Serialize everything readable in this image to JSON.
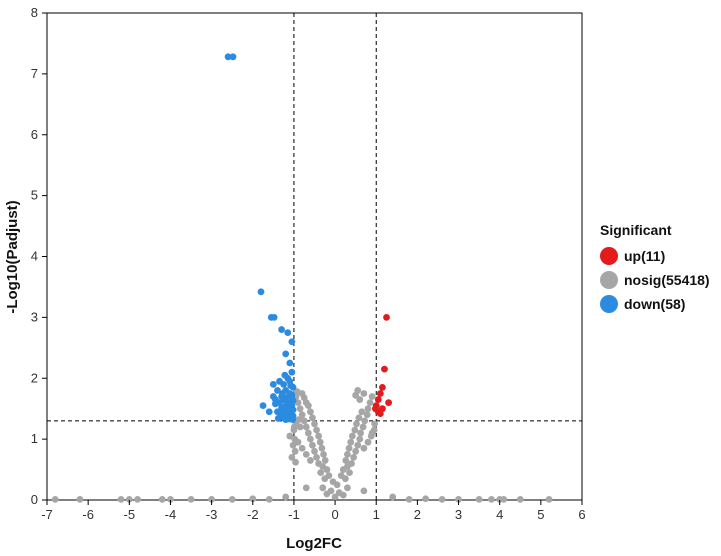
{
  "chart_data": {
    "type": "scatter",
    "title": "",
    "xlabel": "Log2FC",
    "ylabel": "-Log10(Padjust)",
    "xlim": [
      -7,
      6
    ],
    "ylim": [
      0,
      8
    ],
    "xticks": [
      "-7",
      "-6",
      "-5",
      "-4",
      "-3",
      "-2",
      "-1",
      "0",
      "1",
      "2",
      "3",
      "4",
      "5",
      "6"
    ],
    "yticks": [
      "0",
      "1",
      "2",
      "3",
      "4",
      "5",
      "6",
      "7",
      "8"
    ],
    "thresholds": {
      "log2fc": [
        -1,
        1
      ],
      "neg_log10_padjust": 1.3
    },
    "legend": {
      "title": "Significant",
      "entries": [
        {
          "label": "up(11)",
          "color": "#e41a1c"
        },
        {
          "label": "nosig(55418)",
          "color": "#a6a6a6"
        },
        {
          "label": "down(58)",
          "color": "#2b8be0"
        }
      ]
    },
    "series": [
      {
        "name": "up",
        "color": "#e41a1c",
        "points": [
          [
            1.25,
            3.0
          ],
          [
            1.2,
            2.15
          ],
          [
            1.15,
            1.85
          ],
          [
            1.1,
            1.75
          ],
          [
            1.05,
            1.65
          ],
          [
            1.3,
            1.6
          ],
          [
            1.0,
            1.55
          ],
          [
            1.15,
            1.5
          ],
          [
            1.05,
            1.45
          ],
          [
            1.1,
            1.42
          ],
          [
            0.98,
            1.5
          ]
        ]
      },
      {
        "name": "down",
        "color": "#2b8be0",
        "points": [
          [
            -2.6,
            7.28
          ],
          [
            -2.48,
            7.28
          ],
          [
            -1.8,
            3.42
          ],
          [
            -1.55,
            3.0
          ],
          [
            -1.48,
            3.0
          ],
          [
            -1.3,
            2.8
          ],
          [
            -1.15,
            2.75
          ],
          [
            -1.05,
            2.6
          ],
          [
            -1.2,
            2.4
          ],
          [
            -1.1,
            2.25
          ],
          [
            -1.05,
            2.1
          ],
          [
            -1.15,
            2.0
          ],
          [
            -1.35,
            1.95
          ],
          [
            -1.25,
            1.9
          ],
          [
            -1.08,
            1.88
          ],
          [
            -1.02,
            1.85
          ],
          [
            -1.4,
            1.8
          ],
          [
            -1.2,
            1.8
          ],
          [
            -1.1,
            1.75
          ],
          [
            -1.05,
            1.72
          ],
          [
            -1.3,
            1.7
          ],
          [
            -1.18,
            1.68
          ],
          [
            -1.25,
            1.65
          ],
          [
            -1.02,
            1.63
          ],
          [
            -1.35,
            1.6
          ],
          [
            -1.15,
            1.6
          ],
          [
            -1.08,
            1.58
          ],
          [
            -1.45,
            1.58
          ],
          [
            -1.2,
            1.55
          ],
          [
            -1.05,
            1.55
          ],
          [
            -1.3,
            1.52
          ],
          [
            -1.12,
            1.5
          ],
          [
            -1.75,
            1.55
          ],
          [
            -1.6,
            1.45
          ],
          [
            -1.02,
            1.48
          ],
          [
            -1.22,
            1.46
          ],
          [
            -1.4,
            1.45
          ],
          [
            -1.1,
            1.44
          ],
          [
            -1.28,
            1.42
          ],
          [
            -1.05,
            1.4
          ],
          [
            -1.18,
            1.4
          ],
          [
            -1.32,
            1.38
          ],
          [
            -1.02,
            1.38
          ],
          [
            -1.15,
            1.36
          ],
          [
            -1.25,
            1.35
          ],
          [
            -1.08,
            1.34
          ],
          [
            -1.38,
            1.34
          ],
          [
            -1.12,
            1.33
          ],
          [
            -1.2,
            1.32
          ],
          [
            -1.03,
            1.32
          ],
          [
            -1.5,
            1.7
          ],
          [
            -1.45,
            1.65
          ],
          [
            -1.28,
            1.75
          ],
          [
            -1.5,
            1.9
          ],
          [
            -1.1,
            1.95
          ],
          [
            -1.22,
            2.05
          ],
          [
            -1.06,
            1.68
          ],
          [
            -1.14,
            1.52
          ]
        ]
      },
      {
        "name": "nosig",
        "color": "#a6a6a6",
        "points": [
          [
            -0.2,
            0.1
          ],
          [
            -0.1,
            0.15
          ],
          [
            0.0,
            0.05
          ],
          [
            0.1,
            0.12
          ],
          [
            0.2,
            0.08
          ],
          [
            -0.3,
            0.2
          ],
          [
            0.3,
            0.2
          ],
          [
            -0.05,
            0.3
          ],
          [
            0.05,
            0.25
          ],
          [
            -0.25,
            0.35
          ],
          [
            0.25,
            0.35
          ],
          [
            -0.35,
            0.45
          ],
          [
            0.35,
            0.45
          ],
          [
            -0.3,
            0.55
          ],
          [
            0.3,
            0.55
          ],
          [
            -0.4,
            0.6
          ],
          [
            0.4,
            0.6
          ],
          [
            -0.45,
            0.7
          ],
          [
            0.45,
            0.7
          ],
          [
            -0.5,
            0.8
          ],
          [
            0.5,
            0.8
          ],
          [
            -0.55,
            0.9
          ],
          [
            0.55,
            0.9
          ],
          [
            -0.6,
            1.0
          ],
          [
            0.6,
            1.0
          ],
          [
            -0.65,
            1.1
          ],
          [
            0.62,
            1.1
          ],
          [
            -0.7,
            1.2
          ],
          [
            0.68,
            1.2
          ],
          [
            -0.75,
            1.3
          ],
          [
            0.72,
            1.3
          ],
          [
            -0.8,
            1.4
          ],
          [
            0.78,
            1.4
          ],
          [
            -0.85,
            1.5
          ],
          [
            0.8,
            1.5
          ],
          [
            -0.9,
            1.6
          ],
          [
            0.85,
            1.6
          ],
          [
            -0.95,
            1.7
          ],
          [
            0.9,
            1.7
          ],
          [
            -0.92,
            1.78
          ],
          [
            0.55,
            1.8
          ],
          [
            0.5,
            1.72
          ],
          [
            0.6,
            1.65
          ],
          [
            0.7,
            1.75
          ],
          [
            -0.8,
            1.75
          ],
          [
            -0.75,
            1.68
          ],
          [
            -0.7,
            1.6
          ],
          [
            -0.65,
            1.55
          ],
          [
            -0.6,
            1.45
          ],
          [
            0.65,
            1.45
          ],
          [
            -0.55,
            1.35
          ],
          [
            0.58,
            1.35
          ],
          [
            -0.5,
            1.25
          ],
          [
            0.52,
            1.25
          ],
          [
            -0.45,
            1.15
          ],
          [
            0.48,
            1.15
          ],
          [
            -0.4,
            1.05
          ],
          [
            0.42,
            1.05
          ],
          [
            -0.36,
            0.95
          ],
          [
            0.38,
            0.95
          ],
          [
            -0.32,
            0.85
          ],
          [
            0.34,
            0.85
          ],
          [
            -0.28,
            0.75
          ],
          [
            0.3,
            0.75
          ],
          [
            -0.24,
            0.65
          ],
          [
            0.26,
            0.65
          ],
          [
            -0.2,
            0.5
          ],
          [
            0.2,
            0.5
          ],
          [
            -0.15,
            0.4
          ],
          [
            0.15,
            0.4
          ],
          [
            -0.99,
            1.2
          ],
          [
            -0.98,
            1.0
          ],
          [
            -0.97,
            0.8
          ],
          [
            -0.96,
            0.62
          ],
          [
            0.96,
            1.25
          ],
          [
            0.95,
            1.15
          ],
          [
            0.9,
            1.1
          ],
          [
            -1.05,
            0.7
          ],
          [
            -1.02,
            0.9
          ],
          [
            -1.1,
            1.05
          ],
          [
            -1.0,
            1.15
          ],
          [
            -0.95,
            1.25
          ],
          [
            -0.88,
            1.32
          ],
          [
            -0.85,
            1.2
          ],
          [
            -0.9,
            0.95
          ],
          [
            -0.8,
            0.85
          ],
          [
            -0.7,
            0.75
          ],
          [
            -0.6,
            0.65
          ],
          [
            0.7,
            0.85
          ],
          [
            0.8,
            0.95
          ],
          [
            0.88,
            1.05
          ],
          [
            -0.7,
            0.2
          ],
          [
            0.7,
            0.15
          ],
          [
            -1.2,
            0.05
          ],
          [
            1.4,
            0.05
          ],
          [
            -2.0,
            0.02
          ],
          [
            2.2,
            0.02
          ],
          [
            -3.0,
            0.01
          ],
          [
            3.0,
            0.01
          ],
          [
            -4.0,
            0.01
          ],
          [
            4.0,
            0.01
          ],
          [
            -5.0,
            0.01
          ],
          [
            5.2,
            0.01
          ],
          [
            -6.8,
            0.01
          ],
          [
            -6.2,
            0.01
          ],
          [
            -5.2,
            0.01
          ],
          [
            -4.8,
            0.01
          ],
          [
            -4.2,
            0.01
          ],
          [
            -3.5,
            0.01
          ],
          [
            -2.5,
            0.01
          ],
          [
            -1.6,
            0.01
          ],
          [
            1.8,
            0.01
          ],
          [
            2.6,
            0.01
          ],
          [
            3.5,
            0.01
          ],
          [
            4.5,
            0.01
          ],
          [
            4.1,
            0.01
          ],
          [
            3.8,
            0.01
          ]
        ]
      }
    ]
  }
}
